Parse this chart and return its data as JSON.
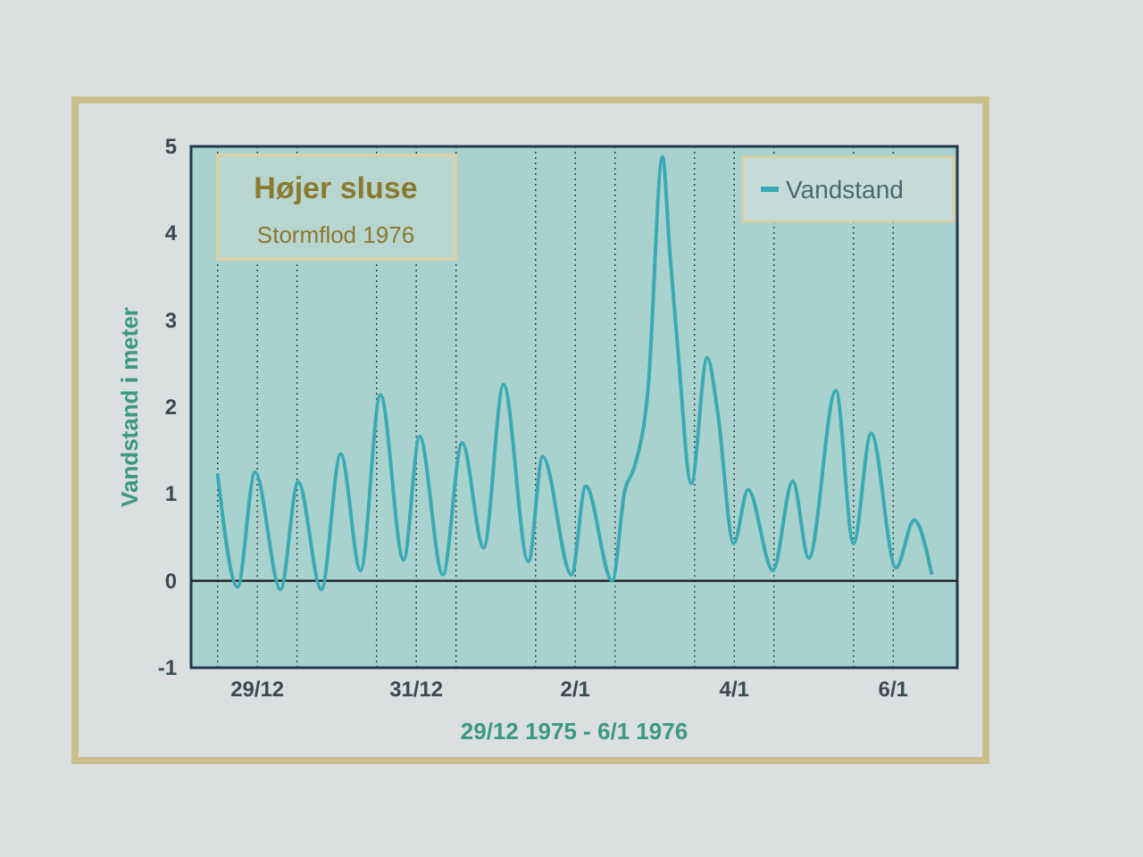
{
  "chart_data": {
    "type": "line",
    "title": "Højer sluse",
    "subtitle": "Stormflod 1976",
    "xlabel": "29/12 1975 - 6/1 1976",
    "ylabel": "Vandstand i meter",
    "legend": "top right",
    "grid": "x",
    "xlim": [
      "1975-12-28T16:00",
      "1976-01-07T07:20"
    ],
    "xticks": [
      {
        "value": "1975-12-29T00:00",
        "label": null
      },
      {
        "value": "1975-12-29T12:00",
        "label": "29/12"
      },
      {
        "value": "1975-12-30T00:00",
        "label": null
      },
      {
        "value": "1975-12-31T00:00",
        "label": null
      },
      {
        "value": "1975-12-31T12:00",
        "label": "31/12"
      },
      {
        "value": "1976-01-01T00:00",
        "label": null
      },
      {
        "value": "1976-01-02T00:00",
        "label": null
      },
      {
        "value": "1976-01-02T12:00",
        "label": "2/1"
      },
      {
        "value": "1976-01-03T00:00",
        "label": null
      },
      {
        "value": "1976-01-04T00:00",
        "label": null
      },
      {
        "value": "1976-01-04T12:00",
        "label": "4/1"
      },
      {
        "value": "1976-01-05T00:00",
        "label": null
      },
      {
        "value": "1976-01-06T00:00",
        "label": null
      },
      {
        "value": "1976-01-06T12:00",
        "label": "6/1"
      }
    ],
    "ylim": [
      -1,
      5
    ],
    "yticks": [
      -1,
      0,
      1,
      2,
      3,
      4,
      5
    ],
    "ref_lines": [
      {
        "axis": "y",
        "value": 0,
        "color": "#1a1a1a"
      }
    ],
    "series": [
      {
        "name": "Vandstand",
        "color": "#3aaab4",
        "x": [
          "1975-12-29T00:00",
          "1975-12-29T06:00",
          "1975-12-29T11:20",
          "1975-12-29T19:00",
          "1975-12-30T00:20",
          "1975-12-30T07:20",
          "1975-12-30T13:10",
          "1975-12-30T19:10",
          "1975-12-31T01:10",
          "1975-12-31T08:10",
          "1975-12-31T13:00",
          "1975-12-31T20:00",
          "1976-01-01T01:50",
          "1976-01-01T08:20",
          "1976-01-01T14:20",
          "1976-01-01T21:50",
          "1976-01-02T02:10",
          "1976-01-02T10:50",
          "1976-01-02T15:10",
          "1976-01-02T23:10",
          "1976-01-03T03:00",
          "1976-01-03T05:40",
          "1976-01-03T10:00",
          "1976-01-03T14:20",
          "1976-01-03T16:30",
          "1976-01-03T19:10",
          "1976-01-03T23:00",
          "1976-01-04T03:50",
          "1976-01-04T07:00",
          "1976-01-04T11:50",
          "1976-01-04T16:10",
          "1976-01-04T23:40",
          "1976-01-05T05:40",
          "1976-01-05T10:30",
          "1976-01-05T18:40",
          "1976-01-06T00:00",
          "1976-01-06T05:20",
          "1976-01-06T12:50",
          "1976-01-06T18:20",
          "1976-01-06T23:40"
        ],
        "values": [
          1.23,
          -0.07,
          1.25,
          -0.1,
          1.14,
          -0.1,
          1.46,
          0.12,
          2.14,
          0.24,
          1.66,
          0.07,
          1.59,
          0.38,
          2.26,
          0.22,
          1.43,
          0.07,
          1.09,
          0.0,
          1.05,
          1.29,
          2.22,
          4.88,
          3.81,
          2.57,
          1.12,
          2.57,
          1.94,
          0.43,
          1.05,
          0.12,
          1.15,
          0.26,
          2.19,
          0.43,
          1.7,
          0.15,
          0.7,
          0.07
        ]
      }
    ]
  }
}
